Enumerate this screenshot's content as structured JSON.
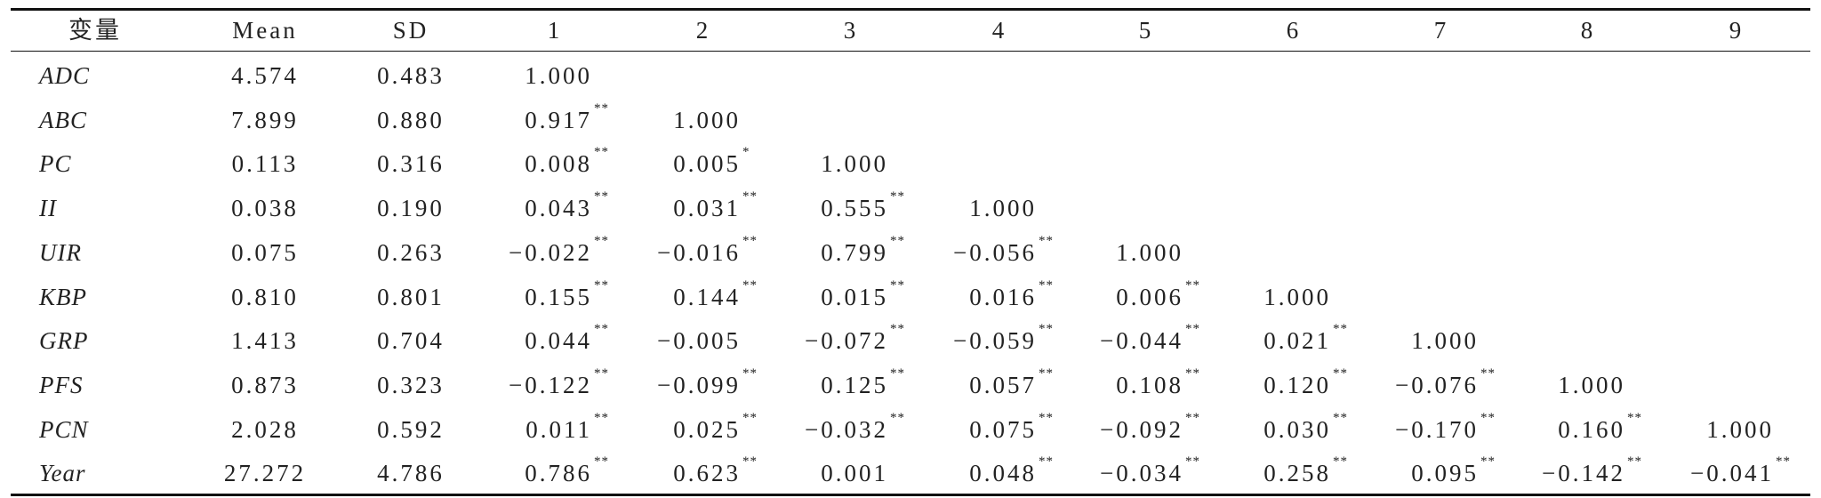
{
  "table": {
    "header": [
      "变量",
      "Mean",
      "SD",
      "1",
      "2",
      "3",
      "4",
      "5",
      "6",
      "7",
      "8",
      "9"
    ],
    "rows": [
      {
        "name": "ADC",
        "mean": "4.574",
        "sd": "0.483",
        "corr": [
          {
            "r": "1.000"
          }
        ]
      },
      {
        "name": "ABC",
        "mean": "7.899",
        "sd": "0.880",
        "corr": [
          {
            "r": "0.917",
            "sig": "**"
          },
          {
            "r": "1.000"
          }
        ]
      },
      {
        "name": "PC",
        "mean": "0.113",
        "sd": "0.316",
        "corr": [
          {
            "r": "0.008",
            "sig": "**"
          },
          {
            "r": "0.005",
            "sig": "*"
          },
          {
            "r": "1.000"
          }
        ]
      },
      {
        "name": "II",
        "mean": "0.038",
        "sd": "0.190",
        "corr": [
          {
            "r": "0.043",
            "sig": "**"
          },
          {
            "r": "0.031",
            "sig": "**"
          },
          {
            "r": "0.555",
            "sig": "**"
          },
          {
            "r": "1.000"
          }
        ]
      },
      {
        "name": "UIR",
        "mean": "0.075",
        "sd": "0.263",
        "corr": [
          {
            "r": "−0.022",
            "sig": "**"
          },
          {
            "r": "−0.016",
            "sig": "**"
          },
          {
            "r": "0.799",
            "sig": "**"
          },
          {
            "r": "−0.056",
            "sig": "**"
          },
          {
            "r": "1.000"
          }
        ]
      },
      {
        "name": "KBP",
        "mean": "0.810",
        "sd": "0.801",
        "corr": [
          {
            "r": "0.155",
            "sig": "**"
          },
          {
            "r": "0.144",
            "sig": "**"
          },
          {
            "r": "0.015",
            "sig": "**"
          },
          {
            "r": "0.016",
            "sig": "**"
          },
          {
            "r": "0.006",
            "sig": "**"
          },
          {
            "r": "1.000"
          }
        ]
      },
      {
        "name": "GRP",
        "mean": "1.413",
        "sd": "0.704",
        "corr": [
          {
            "r": "0.044",
            "sig": "**"
          },
          {
            "r": "−0.005"
          },
          {
            "r": "−0.072",
            "sig": "**"
          },
          {
            "r": "−0.059",
            "sig": "**"
          },
          {
            "r": "−0.044",
            "sig": "**"
          },
          {
            "r": "0.021",
            "sig": "**"
          },
          {
            "r": "1.000"
          }
        ]
      },
      {
        "name": "PFS",
        "mean": "0.873",
        "sd": "0.323",
        "corr": [
          {
            "r": "−0.122",
            "sig": "**"
          },
          {
            "r": "−0.099",
            "sig": "**"
          },
          {
            "r": "0.125",
            "sig": "**"
          },
          {
            "r": "0.057",
            "sig": "**"
          },
          {
            "r": "0.108",
            "sig": "**"
          },
          {
            "r": "0.120",
            "sig": "**"
          },
          {
            "r": "−0.076",
            "sig": "**"
          },
          {
            "r": "1.000"
          }
        ]
      },
      {
        "name": "PCN",
        "mean": "2.028",
        "sd": "0.592",
        "corr": [
          {
            "r": "0.011",
            "sig": "**"
          },
          {
            "r": "0.025",
            "sig": "**"
          },
          {
            "r": "−0.032",
            "sig": "**"
          },
          {
            "r": "0.075",
            "sig": "**"
          },
          {
            "r": "−0.092",
            "sig": "**"
          },
          {
            "r": "0.030",
            "sig": "**"
          },
          {
            "r": "−0.170",
            "sig": "**"
          },
          {
            "r": "0.160",
            "sig": "**"
          },
          {
            "r": "1.000"
          }
        ]
      },
      {
        "name": "Year",
        "mean": "27.272",
        "sd": "4.786",
        "corr": [
          {
            "r": "0.786",
            "sig": "**"
          },
          {
            "r": "0.623",
            "sig": "**"
          },
          {
            "r": "0.001"
          },
          {
            "r": "0.048",
            "sig": "**"
          },
          {
            "r": "−0.034",
            "sig": "**"
          },
          {
            "r": "0.258",
            "sig": "**"
          },
          {
            "r": "0.095",
            "sig": "**"
          },
          {
            "r": "−0.142",
            "sig": "**"
          },
          {
            "r": "−0.041",
            "sig": "**"
          }
        ]
      }
    ]
  }
}
